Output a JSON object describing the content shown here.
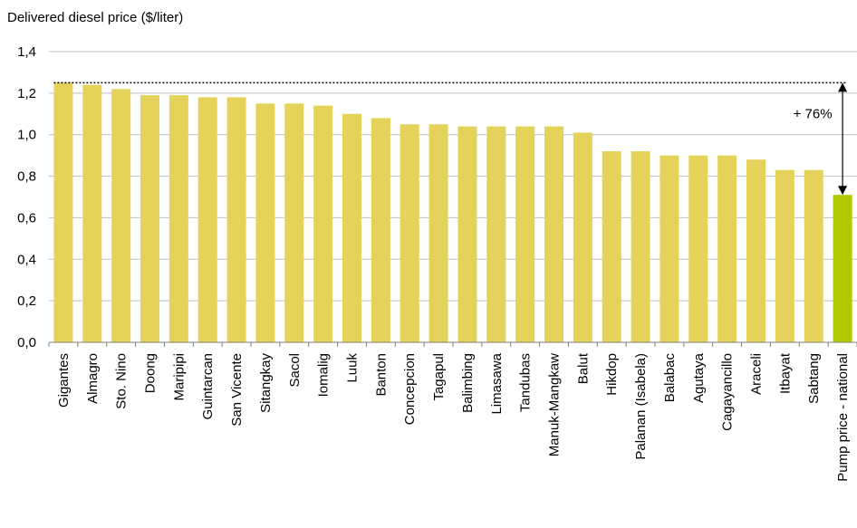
{
  "chart_data": {
    "type": "bar",
    "title": "Delivered diesel price ($/liter)",
    "xlabel": "",
    "ylabel": "",
    "ylim": [
      0,
      1.4
    ],
    "yticks": [
      "0,0",
      "0,2",
      "0,4",
      "0,6",
      "0,8",
      "1,0",
      "1,2",
      "1,4"
    ],
    "grid": true,
    "categories": [
      "Gigantes",
      "Almagro",
      "Sto. Nino",
      "Doong",
      "Maripipi",
      "Guintarcan",
      "San Vicente",
      "Sitangkay",
      "Sacol",
      "Iomalig",
      "Luuk",
      "Banton",
      "Concepcion",
      "Tagapul",
      "Balimbing",
      "Limasawa",
      "Tandubas",
      "Manuk-Mangkaw",
      "Balut",
      "Hikdop",
      "Palanan (Isabela)",
      "Balabac",
      "Agutaya",
      "Cagayancillo",
      "Araceli",
      "Itbayat",
      "Sabtang",
      "Pump price - national"
    ],
    "values": [
      1.25,
      1.24,
      1.22,
      1.19,
      1.19,
      1.18,
      1.18,
      1.15,
      1.15,
      1.14,
      1.1,
      1.08,
      1.05,
      1.05,
      1.04,
      1.04,
      1.04,
      1.04,
      1.01,
      0.92,
      0.92,
      0.9,
      0.9,
      0.9,
      0.88,
      0.83,
      0.83,
      0.71
    ],
    "colors": {
      "default": "#e5d25a",
      "highlight": "#b4c800",
      "grid": "#bfbfbf",
      "axis": "#7f7f7f"
    },
    "highlight_index": 27,
    "annotation": {
      "text": "+ 76%",
      "from_value": 1.25,
      "to_value": 0.71
    }
  }
}
